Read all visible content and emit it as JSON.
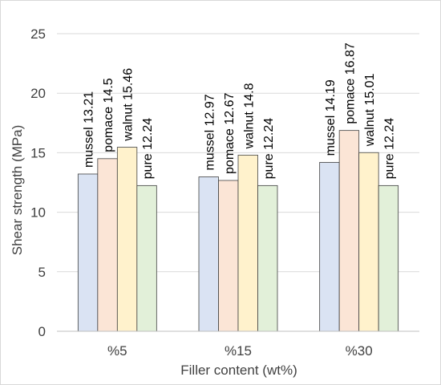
{
  "chart_data": {
    "type": "bar",
    "title": "",
    "xlabel": "Filler content (wt%)",
    "ylabel": "Shear strength (MPa)",
    "ylim": [
      0,
      25
    ],
    "yticks": [
      0,
      5,
      10,
      15,
      20,
      25
    ],
    "grid": true,
    "legend": "none",
    "categories": [
      "%5",
      "%15",
      "%30"
    ],
    "series": [
      {
        "name": "mussel",
        "color": "#dae3f3",
        "values": [
          13.21,
          12.97,
          14.19
        ]
      },
      {
        "name": "pomace",
        "color": "#fbe5d6",
        "values": [
          14.5,
          12.67,
          16.87
        ]
      },
      {
        "name": "walnut",
        "color": "#fff2cc",
        "values": [
          15.46,
          14.8,
          15.01
        ]
      },
      {
        "name": "pure",
        "color": "#e2f0d9",
        "values": [
          12.24,
          12.24,
          12.24
        ]
      }
    ]
  }
}
